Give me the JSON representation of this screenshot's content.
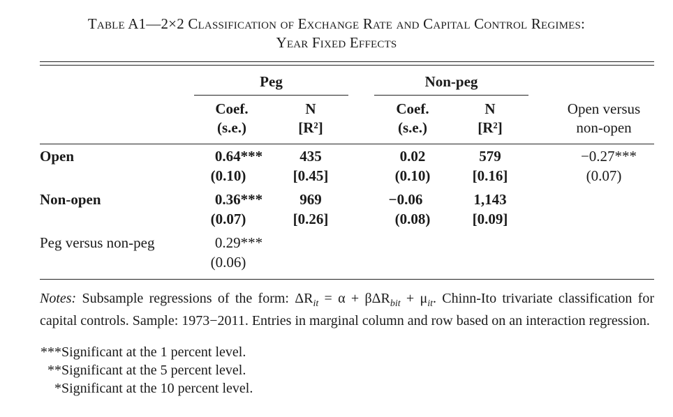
{
  "title": {
    "line1": "Table A1—2×2 Classification of Exchange Rate and Capital Control Regimes:",
    "line2": "Year Fixed Effects"
  },
  "groups": {
    "peg": "Peg",
    "nonpeg": "Non-peg"
  },
  "columns": {
    "coef": "Coef.",
    "se": "(s.e.)",
    "n": "N",
    "r2": "[R²]",
    "open_vs_nonopen_1": "Open versus",
    "open_vs_nonopen_2": "non-open"
  },
  "rows": [
    {
      "label": "Open",
      "peg": {
        "coef": "0.64***",
        "se": "(0.10)",
        "n": "435",
        "r2": "[0.45]"
      },
      "nonpeg": {
        "coef": "0.02",
        "se": "(0.10)",
        "n": "579",
        "r2": "[0.16]"
      },
      "marginal": {
        "coef": "−0.27***",
        "se": "(0.07)"
      }
    },
    {
      "label": "Non-open",
      "peg": {
        "coef": "0.36***",
        "se": "(0.07)",
        "n": "969",
        "r2": "[0.26]"
      },
      "nonpeg": {
        "coef": "−0.06",
        "se": "(0.08)",
        "n": "1,143",
        "r2": "[0.09]"
      }
    },
    {
      "label": "Peg versus non-peg",
      "peg": {
        "coef": "0.29***",
        "se": "(0.06)"
      }
    }
  ],
  "notes": {
    "label": "Notes:",
    "text_a": "Subsample regressions of the form: ΔR",
    "sub_it": "it",
    "text_b": " = α + βΔR",
    "sub_bit": "bit",
    "text_c": " + μ",
    "sub_it2": "it",
    "text_d": ". Chinn-Ito trivariate classification for capital controls. Sample: 1973−2011. Entries in marginal column and row based on an interaction regression.",
    "sig": [
      {
        "stars": "***",
        "text": "Significant at the 1 percent level."
      },
      {
        "stars": "**",
        "text": "Significant at the 5 percent level."
      },
      {
        "stars": "*",
        "text": "Significant at the 10 percent level."
      }
    ]
  }
}
